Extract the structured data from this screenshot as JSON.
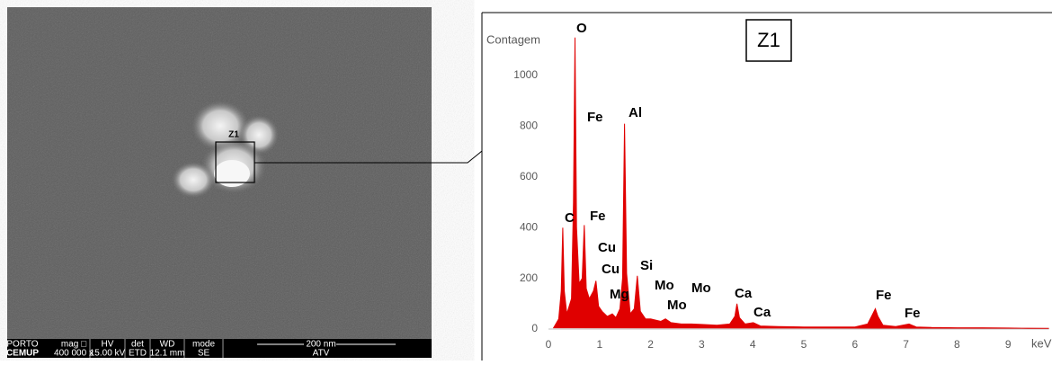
{
  "sem_image": {
    "zone_label": "Z1",
    "info_bar": {
      "logo_top": "PORTO",
      "logo_bottom": "CEMUP",
      "headers": [
        "mag □",
        "HV",
        "det",
        "WD",
        "mode"
      ],
      "values": [
        "400 000 x",
        "15.00 kV",
        "ETD",
        "12.1 mm",
        "SE"
      ],
      "scale": "200 nm",
      "scale_note": "ATV"
    }
  },
  "chart_data": {
    "type": "area",
    "title": "Z1",
    "y_label": "Contagem",
    "x_label": "keV",
    "color": "#e00000",
    "x": [
      0.1,
      0.2,
      0.25,
      0.28,
      0.31,
      0.36,
      0.45,
      0.49,
      0.52,
      0.55,
      0.6,
      0.66,
      0.7,
      0.74,
      0.8,
      0.88,
      0.93,
      0.98,
      1.05,
      1.15,
      1.25,
      1.32,
      1.4,
      1.45,
      1.49,
      1.53,
      1.6,
      1.68,
      1.74,
      1.8,
      1.9,
      2.0,
      2.1,
      2.2,
      2.29,
      2.4,
      2.6,
      2.8,
      3.0,
      3.3,
      3.55,
      3.65,
      3.69,
      3.74,
      3.85,
      4.01,
      4.15,
      4.5,
      5.0,
      5.5,
      6.0,
      6.25,
      6.35,
      6.4,
      6.45,
      6.55,
      6.8,
      7.06,
      7.2,
      7.5,
      8.0,
      8.5,
      9.0,
      9.4,
      9.8
    ],
    "values": [
      5,
      40,
      150,
      400,
      150,
      60,
      120,
      500,
      1150,
      400,
      180,
      200,
      410,
      160,
      120,
      150,
      190,
      90,
      70,
      50,
      60,
      45,
      80,
      200,
      810,
      220,
      60,
      80,
      210,
      70,
      40,
      40,
      35,
      30,
      40,
      25,
      20,
      20,
      18,
      15,
      20,
      50,
      100,
      45,
      20,
      25,
      12,
      10,
      8,
      8,
      8,
      20,
      60,
      80,
      50,
      15,
      10,
      20,
      8,
      6,
      5,
      5,
      4,
      3,
      3
    ],
    "xlim": [
      0,
      9.8
    ],
    "xticks": [
      0,
      1,
      2,
      3,
      4,
      5,
      6,
      7,
      8,
      9
    ],
    "ylim": [
      0,
      1150
    ],
    "yticks": [
      0,
      200,
      400,
      600,
      800,
      1000
    ],
    "annotations": [
      "O",
      "Fe",
      "Al",
      "C",
      "Fe",
      "Cu",
      "Cu",
      "Si",
      "Mo",
      "Mg",
      "Mo",
      "Mo",
      "Ca",
      "Ca",
      "Fe",
      "Fe"
    ]
  }
}
